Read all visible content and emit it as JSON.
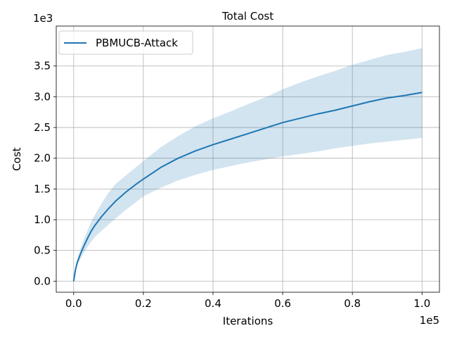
{
  "chart_data": {
    "type": "line",
    "title": "Total Cost",
    "xlabel": "Iterations",
    "ylabel": "Cost",
    "x_offset_label": "1e5",
    "y_offset_label": "1e3",
    "xlim": [
      -5000,
      105000
    ],
    "ylim": [
      -180,
      4150
    ],
    "x_ticks": [
      0,
      20000,
      40000,
      60000,
      80000,
      100000
    ],
    "x_tick_labels": [
      "0.0",
      "0.2",
      "0.4",
      "0.6",
      "0.8",
      "1.0"
    ],
    "y_ticks": [
      0,
      500,
      1000,
      1500,
      2000,
      2500,
      3000,
      3500
    ],
    "y_tick_labels": [
      "0.0",
      "0.5",
      "1.0",
      "1.5",
      "2.0",
      "2.5",
      "3.0",
      "3.5"
    ],
    "grid": true,
    "legend_position": "top-left",
    "series": [
      {
        "name": "PBMUCB-Attack",
        "color": "#1f77b4",
        "x": [
          0,
          500,
          1000,
          2000,
          3000,
          4000,
          5000,
          6000,
          8000,
          10000,
          12000,
          15000,
          18000,
          20000,
          25000,
          30000,
          35000,
          40000,
          45000,
          50000,
          55000,
          60000,
          65000,
          70000,
          75000,
          80000,
          85000,
          90000,
          95000,
          100000
        ],
        "y": [
          0,
          180,
          300,
          450,
          580,
          700,
          810,
          900,
          1050,
          1180,
          1300,
          1450,
          1580,
          1660,
          1850,
          2000,
          2120,
          2220,
          2310,
          2400,
          2490,
          2580,
          2650,
          2720,
          2780,
          2850,
          2920,
          2980,
          3020,
          3070
        ],
        "lower": [
          0,
          150,
          250,
          370,
          470,
          560,
          640,
          710,
          820,
          920,
          1020,
          1160,
          1290,
          1380,
          1520,
          1640,
          1730,
          1810,
          1870,
          1930,
          1980,
          2030,
          2070,
          2110,
          2160,
          2200,
          2240,
          2270,
          2300,
          2330
        ],
        "upper": [
          0,
          210,
          350,
          530,
          690,
          830,
          960,
          1070,
          1260,
          1440,
          1580,
          1720,
          1860,
          1950,
          2180,
          2360,
          2520,
          2650,
          2760,
          2880,
          2990,
          3120,
          3230,
          3330,
          3420,
          3520,
          3600,
          3680,
          3730,
          3790
        ]
      }
    ]
  }
}
